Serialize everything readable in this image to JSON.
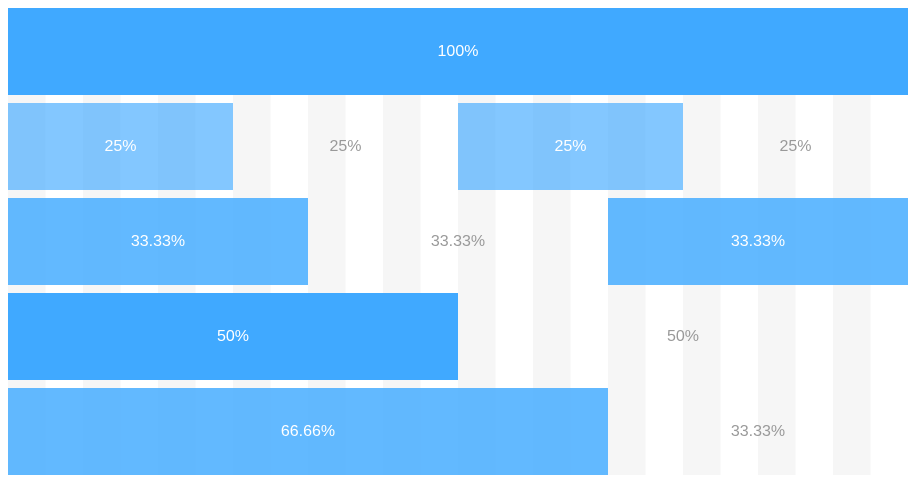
{
  "rows": [
    {
      "cols": [
        {
          "label": "100%",
          "filled": true
        }
      ]
    },
    {
      "cols": [
        {
          "label": "25%",
          "filled": true
        },
        {
          "label": "25%",
          "filled": false
        },
        {
          "label": "25%",
          "filled": true
        },
        {
          "label": "25%",
          "filled": false
        }
      ]
    },
    {
      "cols": [
        {
          "label": "33.33%",
          "filled": true
        },
        {
          "label": "33.33%",
          "filled": false
        },
        {
          "label": "33.33%",
          "filled": true
        }
      ]
    },
    {
      "cols": [
        {
          "label": "50%",
          "filled": true
        },
        {
          "label": "50%",
          "filled": false
        }
      ]
    },
    {
      "cols": [
        {
          "label": "66.66%",
          "filled": true
        },
        {
          "label": "33.33%",
          "filled": false
        }
      ]
    }
  ],
  "colors": {
    "primary": "#40a9ff",
    "empty_text": "#999999",
    "stripe": "#f7f7f7"
  }
}
